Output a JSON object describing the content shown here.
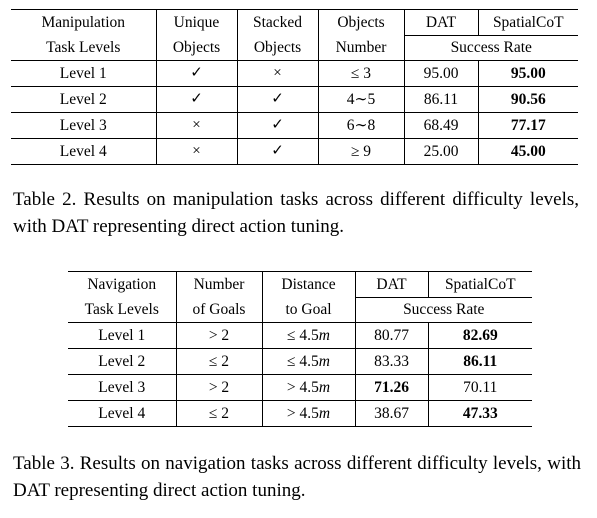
{
  "table2": {
    "header_row1": [
      "Manipulation",
      "Unique",
      "Stacked",
      "Objects",
      "DAT",
      "SpatialCoT"
    ],
    "header_row2": [
      "Task Levels",
      "Objects",
      "Objects",
      "Number",
      "Success Rate"
    ],
    "rows": [
      {
        "level": "Level 1",
        "unique": "✓",
        "stacked": "×",
        "number": "≤ 3",
        "dat": "95.00",
        "spatialcot": "95.00"
      },
      {
        "level": "Level 2",
        "unique": "✓",
        "stacked": "✓",
        "number": "4∼5",
        "dat": "86.11",
        "spatialcot": "90.56"
      },
      {
        "level": "Level 3",
        "unique": "×",
        "stacked": "✓",
        "number": "6∼8",
        "dat": "68.49",
        "spatialcot": "77.17"
      },
      {
        "level": "Level 4",
        "unique": "×",
        "stacked": "✓",
        "number": "≥ 9",
        "dat": "25.00",
        "spatialcot": "45.00"
      }
    ],
    "caption": "Table 2. Results on manipulation tasks across different difficulty levels, with DAT representing direct action tuning."
  },
  "table3": {
    "header_row1": [
      "Navigation",
      "Number",
      "Distance",
      "DAT",
      "SpatialCoT"
    ],
    "header_row2": [
      "Task Levels",
      "of Goals",
      "to Goal",
      "Success Rate"
    ],
    "rows": [
      {
        "level": "Level 1",
        "goals": "> 2",
        "distance_op": "≤ 4.5",
        "distance_unit": "m",
        "dat": "80.77",
        "spatialcot": "82.69"
      },
      {
        "level": "Level 2",
        "goals": "≤ 2",
        "distance_op": "≤ 4.5",
        "distance_unit": "m",
        "dat": "83.33",
        "spatialcot": "86.11"
      },
      {
        "level": "Level 3",
        "goals": "> 2",
        "distance_op": "> 4.5",
        "distance_unit": "m",
        "dat": "71.26",
        "spatialcot": "70.11"
      },
      {
        "level": "Level 4",
        "goals": "≤ 2",
        "distance_op": "> 4.5",
        "distance_unit": "m",
        "dat": "38.67",
        "spatialcot": "47.33"
      }
    ],
    "caption": "Table 3. Results on navigation tasks across different difficulty levels, with DAT representing direct action tuning."
  }
}
